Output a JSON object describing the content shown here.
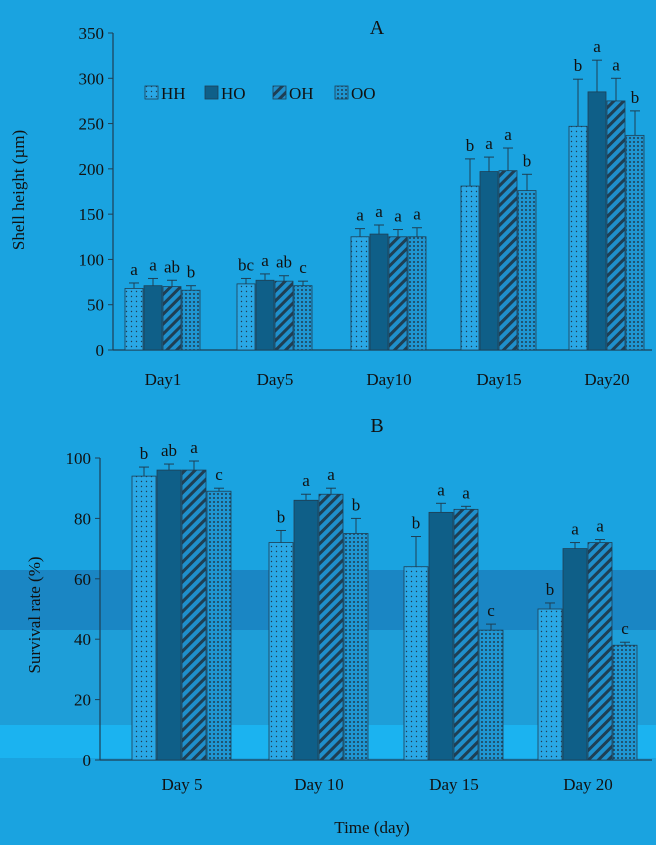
{
  "colors": {
    "background": "#1aa3e0",
    "band_dark": "#1a86c4",
    "band_mid": "#1e9ed8",
    "band_light": "#1bb3f0",
    "HH": "#2aa8e6",
    "HO": "#0f5f88",
    "OH": "#1f8fcb",
    "OO": "#1f96d2",
    "ink": "#1e3f54"
  },
  "chart_data": [
    {
      "type": "bar",
      "title": "A",
      "ylabel": "Shell height (µm)",
      "ylim": [
        0,
        350
      ],
      "yticks": [
        0,
        50,
        100,
        150,
        200,
        250,
        300,
        350
      ],
      "legend_position": "top-left",
      "categories": [
        "Day1",
        "Day5",
        "Day10",
        "Day15",
        "Day20"
      ],
      "series": [
        {
          "name": "HH",
          "values": [
            68,
            73,
            125,
            181,
            247
          ],
          "errors": [
            6,
            6,
            9,
            30,
            52
          ],
          "letters": [
            "a",
            "bc",
            "a",
            "b",
            "b"
          ]
        },
        {
          "name": "HO",
          "values": [
            71,
            77,
            128,
            197,
            285
          ],
          "errors": [
            8,
            7,
            10,
            16,
            35
          ],
          "letters": [
            "a",
            "a",
            "a",
            "a",
            "a"
          ]
        },
        {
          "name": "OH",
          "values": [
            70,
            76,
            125,
            198,
            275
          ],
          "errors": [
            7,
            6,
            8,
            25,
            25
          ],
          "letters": [
            "ab",
            "ab",
            "a",
            "a",
            "a"
          ]
        },
        {
          "name": "OO",
          "values": [
            66,
            71,
            125,
            176,
            237
          ],
          "errors": [
            5,
            5,
            10,
            18,
            27
          ],
          "letters": [
            "b",
            "c",
            "a",
            "b",
            "b"
          ]
        }
      ]
    },
    {
      "type": "bar",
      "title": "B",
      "ylabel": "Survival rate (%)",
      "xlabel": "Time (day)",
      "ylim": [
        0,
        100
      ],
      "yticks": [
        0,
        20,
        40,
        60,
        80,
        100
      ],
      "categories": [
        "Day 5",
        "Day 10",
        "Day 15",
        "Day 20"
      ],
      "series": [
        {
          "name": "HH",
          "values": [
            94,
            72,
            64,
            50
          ],
          "errors": [
            3,
            4,
            10,
            2
          ],
          "letters": [
            "b",
            "b",
            "b",
            "b"
          ]
        },
        {
          "name": "HO",
          "values": [
            96,
            86,
            82,
            70
          ],
          "errors": [
            2,
            2,
            3,
            2
          ],
          "letters": [
            "ab",
            "a",
            "a",
            "a"
          ]
        },
        {
          "name": "OH",
          "values": [
            96,
            88,
            83,
            72
          ],
          "errors": [
            3,
            2,
            1,
            1
          ],
          "letters": [
            "a",
            "a",
            "a",
            "a"
          ]
        },
        {
          "name": "OO",
          "values": [
            89,
            75,
            43,
            38
          ],
          "errors": [
            1,
            5,
            2,
            1
          ],
          "letters": [
            "c",
            "b",
            "c",
            "c"
          ]
        }
      ]
    }
  ]
}
